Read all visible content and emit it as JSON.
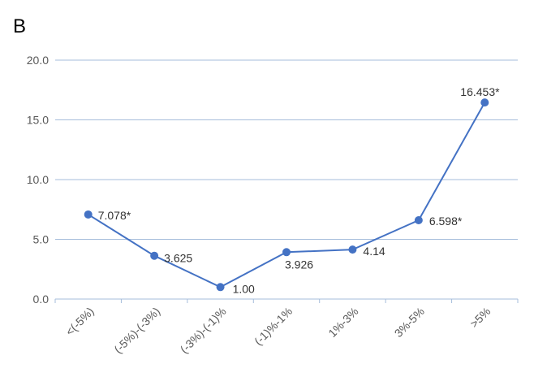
{
  "panel_label": "B",
  "chart_data": {
    "type": "line",
    "categories": [
      "<(-5%)",
      "(-5%)-(-3%)",
      "(-3%)-(-1)%",
      "(-1)%-1%",
      "1%-3%",
      "3%-5%",
      ">5%"
    ],
    "series": [
      {
        "values": [
          7.078,
          3.625,
          1.0,
          3.926,
          4.14,
          6.598,
          16.453
        ],
        "labels": [
          "7.078*",
          "3.625",
          "1.00",
          "3.926",
          "4.14",
          "6.598*",
          "16.453*"
        ],
        "color": "#4472c4"
      }
    ],
    "yticks": [
      "0.0",
      "5.0",
      "10.0",
      "15.0",
      "20.0"
    ],
    "ylim": [
      0,
      20
    ],
    "grid": true,
    "legend": "none",
    "gridColor": "#a6bddb"
  }
}
